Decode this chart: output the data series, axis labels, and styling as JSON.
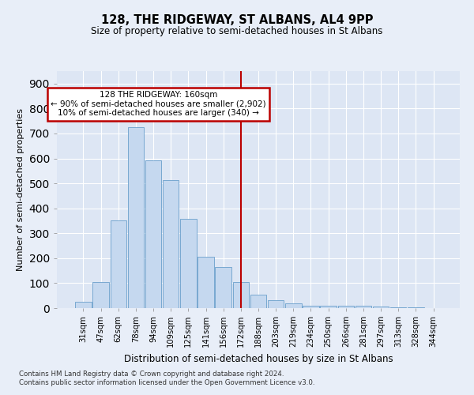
{
  "title": "128, THE RIDGEWAY, ST ALBANS, AL4 9PP",
  "subtitle": "Size of property relative to semi-detached houses in St Albans",
  "xlabel": "Distribution of semi-detached houses by size in St Albans",
  "ylabel": "Number of semi-detached properties",
  "bar_color": "#c5d8ef",
  "bar_edge_color": "#6a9fcb",
  "categories": [
    "31sqm",
    "47sqm",
    "62sqm",
    "78sqm",
    "94sqm",
    "109sqm",
    "125sqm",
    "141sqm",
    "156sqm",
    "172sqm",
    "188sqm",
    "203sqm",
    "219sqm",
    "234sqm",
    "250sqm",
    "266sqm",
    "281sqm",
    "297sqm",
    "313sqm",
    "328sqm",
    "344sqm"
  ],
  "values": [
    25,
    106,
    350,
    725,
    593,
    512,
    357,
    207,
    165,
    103,
    53,
    32,
    18,
    10,
    8,
    10,
    8,
    5,
    4,
    2,
    1
  ],
  "ylim": [
    0,
    950
  ],
  "yticks": [
    0,
    100,
    200,
    300,
    400,
    500,
    600,
    700,
    800,
    900
  ],
  "vline_x": 9.0,
  "vline_color": "#bb0000",
  "annotation_text": "128 THE RIDGEWAY: 160sqm\n← 90% of semi-detached houses are smaller (2,902)\n10% of semi-detached houses are larger (340) →",
  "annotation_box_color": "#bb0000",
  "bg_color": "#dde6f4",
  "fig_bg_color": "#e8eef8",
  "grid_color": "#ffffff",
  "footer_line1": "Contains HM Land Registry data © Crown copyright and database right 2024.",
  "footer_line2": "Contains public sector information licensed under the Open Government Licence v3.0."
}
